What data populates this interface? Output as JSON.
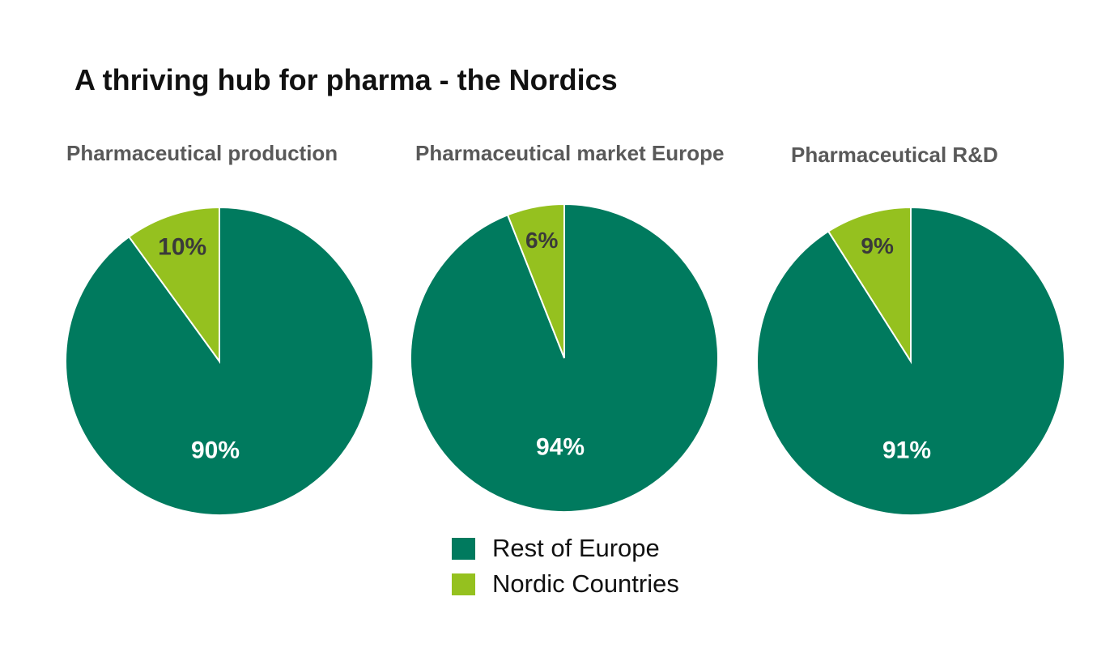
{
  "title": "A thriving hub for pharma - the Nordics",
  "colors": {
    "rest": "#007A5E",
    "nordic": "#95C11F",
    "label_on_rest": "#FFFFFF",
    "label_on_nordic": "#3A3A3A"
  },
  "chart_data": [
    {
      "type": "pie",
      "title": "Pharmaceutical production",
      "slices": [
        {
          "name": "Nordic Countries",
          "value": 10,
          "label": "10%"
        },
        {
          "name": "Rest of Europe",
          "value": 90,
          "label": "90%"
        }
      ]
    },
    {
      "type": "pie",
      "title": "Pharmaceutical market Europe",
      "slices": [
        {
          "name": "Nordic Countries",
          "value": 6,
          "label": "6%"
        },
        {
          "name": "Rest of Europe",
          "value": 94,
          "label": "94%"
        }
      ]
    },
    {
      "type": "pie",
      "title": "Pharmaceutical R&D",
      "slices": [
        {
          "name": "Nordic Countries",
          "value": 9,
          "label": "9%"
        },
        {
          "name": "Rest of Europe",
          "value": 91,
          "label": "91%"
        }
      ]
    }
  ],
  "legend": [
    {
      "label": "Rest of Europe",
      "color": "#007A5E"
    },
    {
      "label": "Nordic Countries",
      "color": "#95C11F"
    }
  ]
}
